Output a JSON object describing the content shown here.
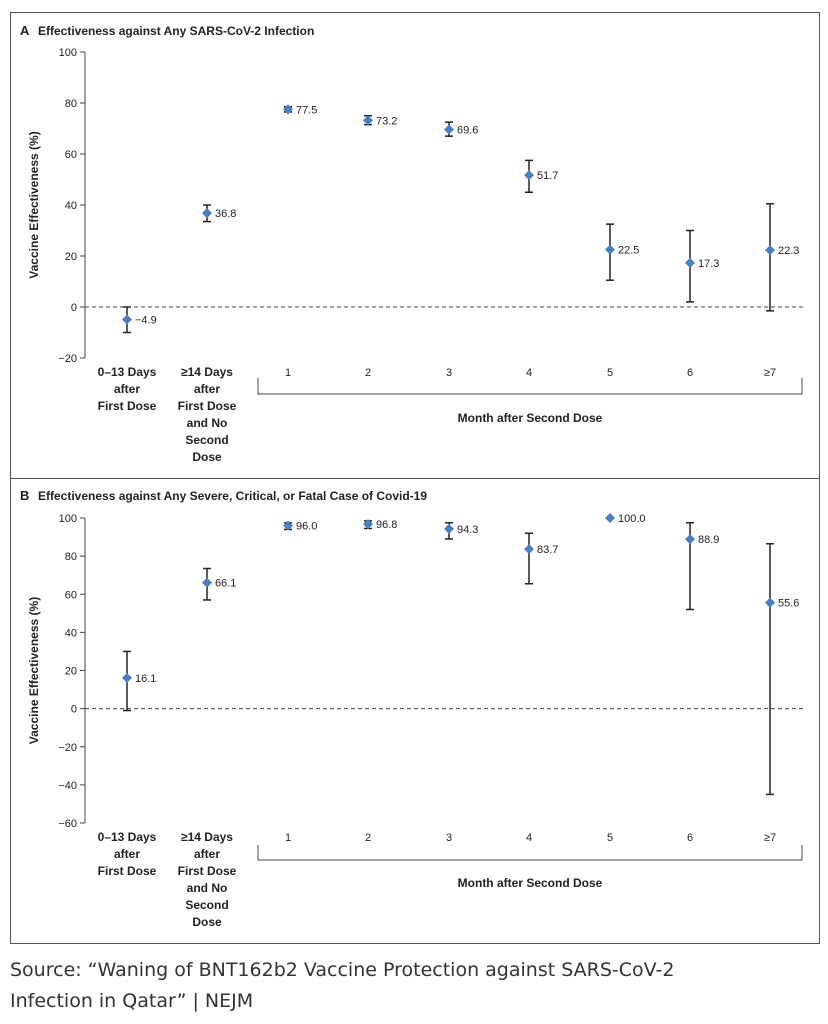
{
  "chart_data": [
    {
      "type": "scatter",
      "panel_letter": "A",
      "title": "Effectiveness against Any SARS-CoV-2 Infection",
      "ylabel": "Vaccine Effectiveness (%)",
      "xlabel": "Month after Second Dose",
      "ylim": [
        -20,
        100
      ],
      "yticks": [
        -20,
        0,
        20,
        40,
        60,
        80,
        100
      ],
      "reference_line": 0,
      "categories": [
        [
          "0–13 Days",
          "after",
          "First Dose"
        ],
        [
          "≥14 Days",
          "after",
          "First Dose",
          "and No",
          "Second",
          "Dose"
        ],
        [
          "1"
        ],
        [
          "2"
        ],
        [
          "3"
        ],
        [
          "4"
        ],
        [
          "5"
        ],
        [
          "6"
        ],
        [
          "≥7"
        ]
      ],
      "values": [
        -4.9,
        36.8,
        77.5,
        73.2,
        69.6,
        51.7,
        22.5,
        17.3,
        22.3
      ],
      "labels": [
        "−4.9",
        "36.8",
        "77.5",
        "73.2",
        "69.6",
        "51.7",
        "22.5",
        "17.3",
        "22.3"
      ],
      "ci_low": [
        -10,
        33.5,
        76.5,
        71.5,
        67,
        45,
        10.5,
        2,
        -1.5
      ],
      "ci_high": [
        0,
        40,
        78.5,
        75,
        72.5,
        57.5,
        32.5,
        30,
        40.5
      ]
    },
    {
      "type": "scatter",
      "panel_letter": "B",
      "title": "Effectiveness against Any Severe, Critical, or Fatal Case of Covid-19",
      "ylabel": "Vaccine Effectiveness (%)",
      "xlabel": "Month after Second Dose",
      "ylim": [
        -60,
        100
      ],
      "yticks": [
        -60,
        -40,
        -20,
        0,
        20,
        40,
        60,
        80,
        100
      ],
      "reference_line": 0,
      "categories": [
        [
          "0–13 Days",
          "after",
          "First Dose"
        ],
        [
          "≥14 Days",
          "after",
          "First Dose",
          "and No",
          "Second",
          "Dose"
        ],
        [
          "1"
        ],
        [
          "2"
        ],
        [
          "3"
        ],
        [
          "4"
        ],
        [
          "5"
        ],
        [
          "6"
        ],
        [
          "≥7"
        ]
      ],
      "values": [
        16.1,
        66.1,
        96.0,
        96.8,
        94.3,
        83.7,
        100.0,
        88.9,
        55.6
      ],
      "labels": [
        "16.1",
        "66.1",
        "96.0",
        "96.8",
        "94.3",
        "83.7",
        "100.0",
        "88.9",
        "55.6"
      ],
      "ci_low": [
        -1,
        57,
        94,
        94.5,
        89,
        65.5,
        100,
        52,
        -45
      ],
      "ci_high": [
        30,
        73.5,
        97.5,
        98.5,
        97.5,
        92,
        100,
        97.5,
        86.5
      ]
    }
  ],
  "colors": {
    "marker": "#4a7fc1",
    "axis": "#444444",
    "text": "#222222",
    "caption": "#333333"
  },
  "caption": {
    "line1": "Source: “Waning of BNT162b2 Vaccine Protection against SARS-CoV-2",
    "line2": "Infection in Qatar” | NEJM"
  }
}
